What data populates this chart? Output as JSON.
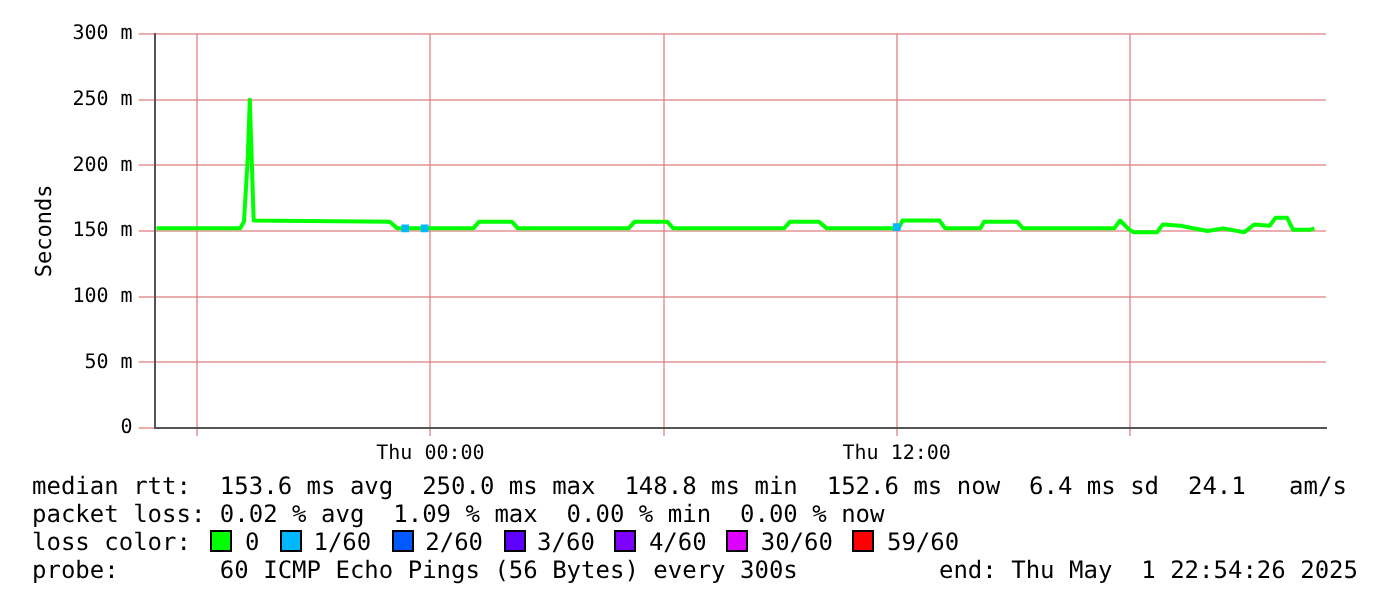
{
  "chart_data": {
    "type": "line",
    "ylabel": "Seconds",
    "legend_title": "loss color:",
    "legend": "bottom",
    "grid": true,
    "marker": "none",
    "line_style": "solid",
    "xlim": [
      "2025-04-30T16:54",
      "2025-05-01T23:03"
    ],
    "xticks": [
      {
        "value": "2025-04-30T18:00",
        "label": null
      },
      {
        "value": "2025-05-01T00:00",
        "label": "Thu 00:00"
      },
      {
        "value": "2025-05-01T06:00",
        "label": null
      },
      {
        "value": "2025-05-01T12:00",
        "label": "Thu 12:00"
      },
      {
        "value": "2025-05-01T18:00",
        "label": null
      }
    ],
    "ylim": [
      0,
      300
    ],
    "yticks": [
      0,
      {
        "value": 50,
        "label": "50 m"
      },
      {
        "value": 100,
        "label": "100 m"
      },
      {
        "value": 150,
        "label": "150 m"
      },
      {
        "value": 200,
        "label": "200 m"
      },
      {
        "value": 250,
        "label": "250 m"
      },
      {
        "value": 300,
        "label": "300 m"
      }
    ],
    "series": [
      {
        "name": "0",
        "color": "#00ff00",
        "x": [
          "2025-04-30T16:57",
          "2025-04-30T19:06",
          "2025-04-30T19:12",
          "2025-04-30T19:18",
          "2025-04-30T19:21",
          "2025-04-30T19:27",
          "2025-04-30T22:57",
          "2025-04-30T23:09",
          "2025-05-01T01:06",
          "2025-05-01T01:15",
          "2025-05-01T02:06",
          "2025-05-01T02:15",
          "2025-05-01T05:06",
          "2025-05-01T05:15",
          "2025-05-01T06:06",
          "2025-05-01T06:15",
          "2025-05-01T09:06",
          "2025-05-01T09:15",
          "2025-05-01T10:00",
          "2025-05-01T10:12",
          "2025-05-01T12:03",
          "2025-05-01T12:09",
          "2025-05-01T13:06",
          "2025-05-01T13:15",
          "2025-05-01T14:09",
          "2025-05-01T14:15",
          "2025-05-01T15:06",
          "2025-05-01T15:15",
          "2025-05-01T17:36",
          "2025-05-01T17:45",
          "2025-05-01T17:57",
          "2025-05-01T18:06",
          "2025-05-01T18:42",
          "2025-05-01T18:51",
          "2025-05-01T19:18",
          "2025-05-01T20:00",
          "2025-05-01T20:24",
          "2025-05-01T20:57",
          "2025-05-01T21:12",
          "2025-05-01T21:36",
          "2025-05-01T21:45",
          "2025-05-01T22:03",
          "2025-05-01T22:12",
          "2025-05-01T22:39",
          "2025-05-01T22:45"
        ],
        "values": [
          152,
          152,
          157,
          207,
          250,
          158,
          157,
          152,
          152,
          157,
          157,
          152,
          152,
          157,
          157,
          152,
          152,
          157,
          157,
          152,
          152,
          158,
          158,
          152,
          152,
          157,
          157,
          152,
          152,
          158,
          152,
          149,
          149,
          155,
          154,
          150,
          152,
          149,
          155,
          154,
          160,
          160,
          151,
          151,
          152
        ]
      },
      {
        "name": "1/60",
        "color": "#00b8ff",
        "type": "scatter",
        "marker": "square",
        "x": [
          "2025-04-30T23:21",
          "2025-04-30T23:51",
          "2025-05-01T12:00"
        ],
        "values": [
          152,
          152,
          153
        ]
      },
      {
        "name": "2/60",
        "color": "#0059ff"
      },
      {
        "name": "3/60",
        "color": "#5e00ff"
      },
      {
        "name": "4/60",
        "color": "#7e00ff"
      },
      {
        "name": "30/60",
        "color": "#dd00ff"
      },
      {
        "name": "59/60",
        "color": "#ff0000"
      }
    ],
    "annotations": [
      "median rtt:  153.6 ms avg  250.0 ms max  148.8 ms min  152.6 ms now  6.4 ms sd  24.1   am/s",
      "packet loss: 0.02 % avg  1.09 % max  0.00 % min  0.00 % now",
      "probe:       60 ICMP Echo Pings (56 Bytes) every 300s",
      "end: Thu May  1 22:54:26 2025"
    ]
  }
}
